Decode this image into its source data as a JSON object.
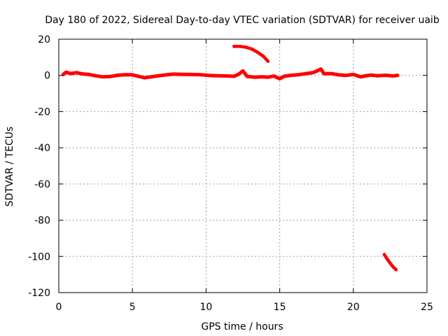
{
  "chart_data": {
    "type": "scatter",
    "title": "Day 180 of 2022, Sidereal Day-to-day VTEC variation (SDTVAR) for receiver uaib",
    "xlabel": "GPS time / hours",
    "ylabel": "SDTVAR / TECUs",
    "xlim": [
      0,
      25
    ],
    "ylim": [
      -120,
      20
    ],
    "xticks": [
      0,
      5,
      10,
      15,
      20,
      25
    ],
    "yticks": [
      20,
      0,
      -20,
      -40,
      -60,
      -80,
      -100,
      -120
    ],
    "xtick_labels": [
      "0",
      "5",
      "10",
      "15",
      "20",
      "25"
    ],
    "ytick_labels": [
      "20",
      "0",
      "-20",
      "-40",
      "-60",
      "-80",
      "-100",
      "-120"
    ],
    "grid": true,
    "series_color": "#ff0000",
    "series": [
      {
        "name": "main-band",
        "points": [
          [
            0.3,
            0.5
          ],
          [
            0.5,
            1.8
          ],
          [
            0.8,
            1.0
          ],
          [
            1.2,
            1.5
          ],
          [
            1.6,
            0.8
          ],
          [
            2.0,
            0.6
          ],
          [
            2.5,
            -0.2
          ],
          [
            3.0,
            -0.8
          ],
          [
            3.5,
            -0.6
          ],
          [
            4.0,
            0.1
          ],
          [
            4.5,
            0.4
          ],
          [
            5.0,
            0.3
          ],
          [
            5.4,
            -0.5
          ],
          [
            5.8,
            -1.3
          ],
          [
            6.2,
            -0.9
          ],
          [
            6.8,
            -0.2
          ],
          [
            7.3,
            0.3
          ],
          [
            7.8,
            0.7
          ],
          [
            8.4,
            0.6
          ],
          [
            9.0,
            0.5
          ],
          [
            9.6,
            0.4
          ],
          [
            10.2,
            0.0
          ],
          [
            10.8,
            -0.2
          ],
          [
            11.4,
            -0.3
          ],
          [
            11.9,
            -0.5
          ],
          [
            12.2,
            0.6
          ],
          [
            12.5,
            2.5
          ],
          [
            12.8,
            -0.6
          ],
          [
            13.3,
            -1.0
          ],
          [
            13.8,
            -0.8
          ],
          [
            14.2,
            -1.0
          ],
          [
            14.6,
            -0.4
          ],
          [
            15.0,
            -1.8
          ],
          [
            15.3,
            -0.5
          ],
          [
            15.8,
            0.1
          ],
          [
            16.3,
            0.4
          ],
          [
            16.8,
            1.0
          ],
          [
            17.3,
            1.6
          ],
          [
            17.8,
            3.5
          ],
          [
            18.0,
            1.0
          ],
          [
            18.5,
            1.0
          ],
          [
            19.0,
            0.3
          ],
          [
            19.5,
            0.0
          ],
          [
            20.0,
            0.5
          ],
          [
            20.5,
            -0.8
          ],
          [
            20.8,
            -0.3
          ],
          [
            21.2,
            0.2
          ],
          [
            21.6,
            -0.2
          ],
          [
            22.2,
            0.1
          ],
          [
            22.7,
            -0.3
          ],
          [
            23.0,
            0.0
          ]
        ]
      },
      {
        "name": "upper-arc",
        "points": [
          [
            11.9,
            16.0
          ],
          [
            12.3,
            16.0
          ],
          [
            12.7,
            15.6
          ],
          [
            13.1,
            14.6
          ],
          [
            13.5,
            12.8
          ],
          [
            13.9,
            10.5
          ],
          [
            14.2,
            7.8
          ]
        ]
      },
      {
        "name": "lower-arc",
        "points": [
          [
            22.1,
            -99.0
          ],
          [
            22.3,
            -101.5
          ],
          [
            22.5,
            -103.8
          ],
          [
            22.7,
            -105.8
          ],
          [
            22.9,
            -107.3
          ]
        ]
      }
    ]
  }
}
